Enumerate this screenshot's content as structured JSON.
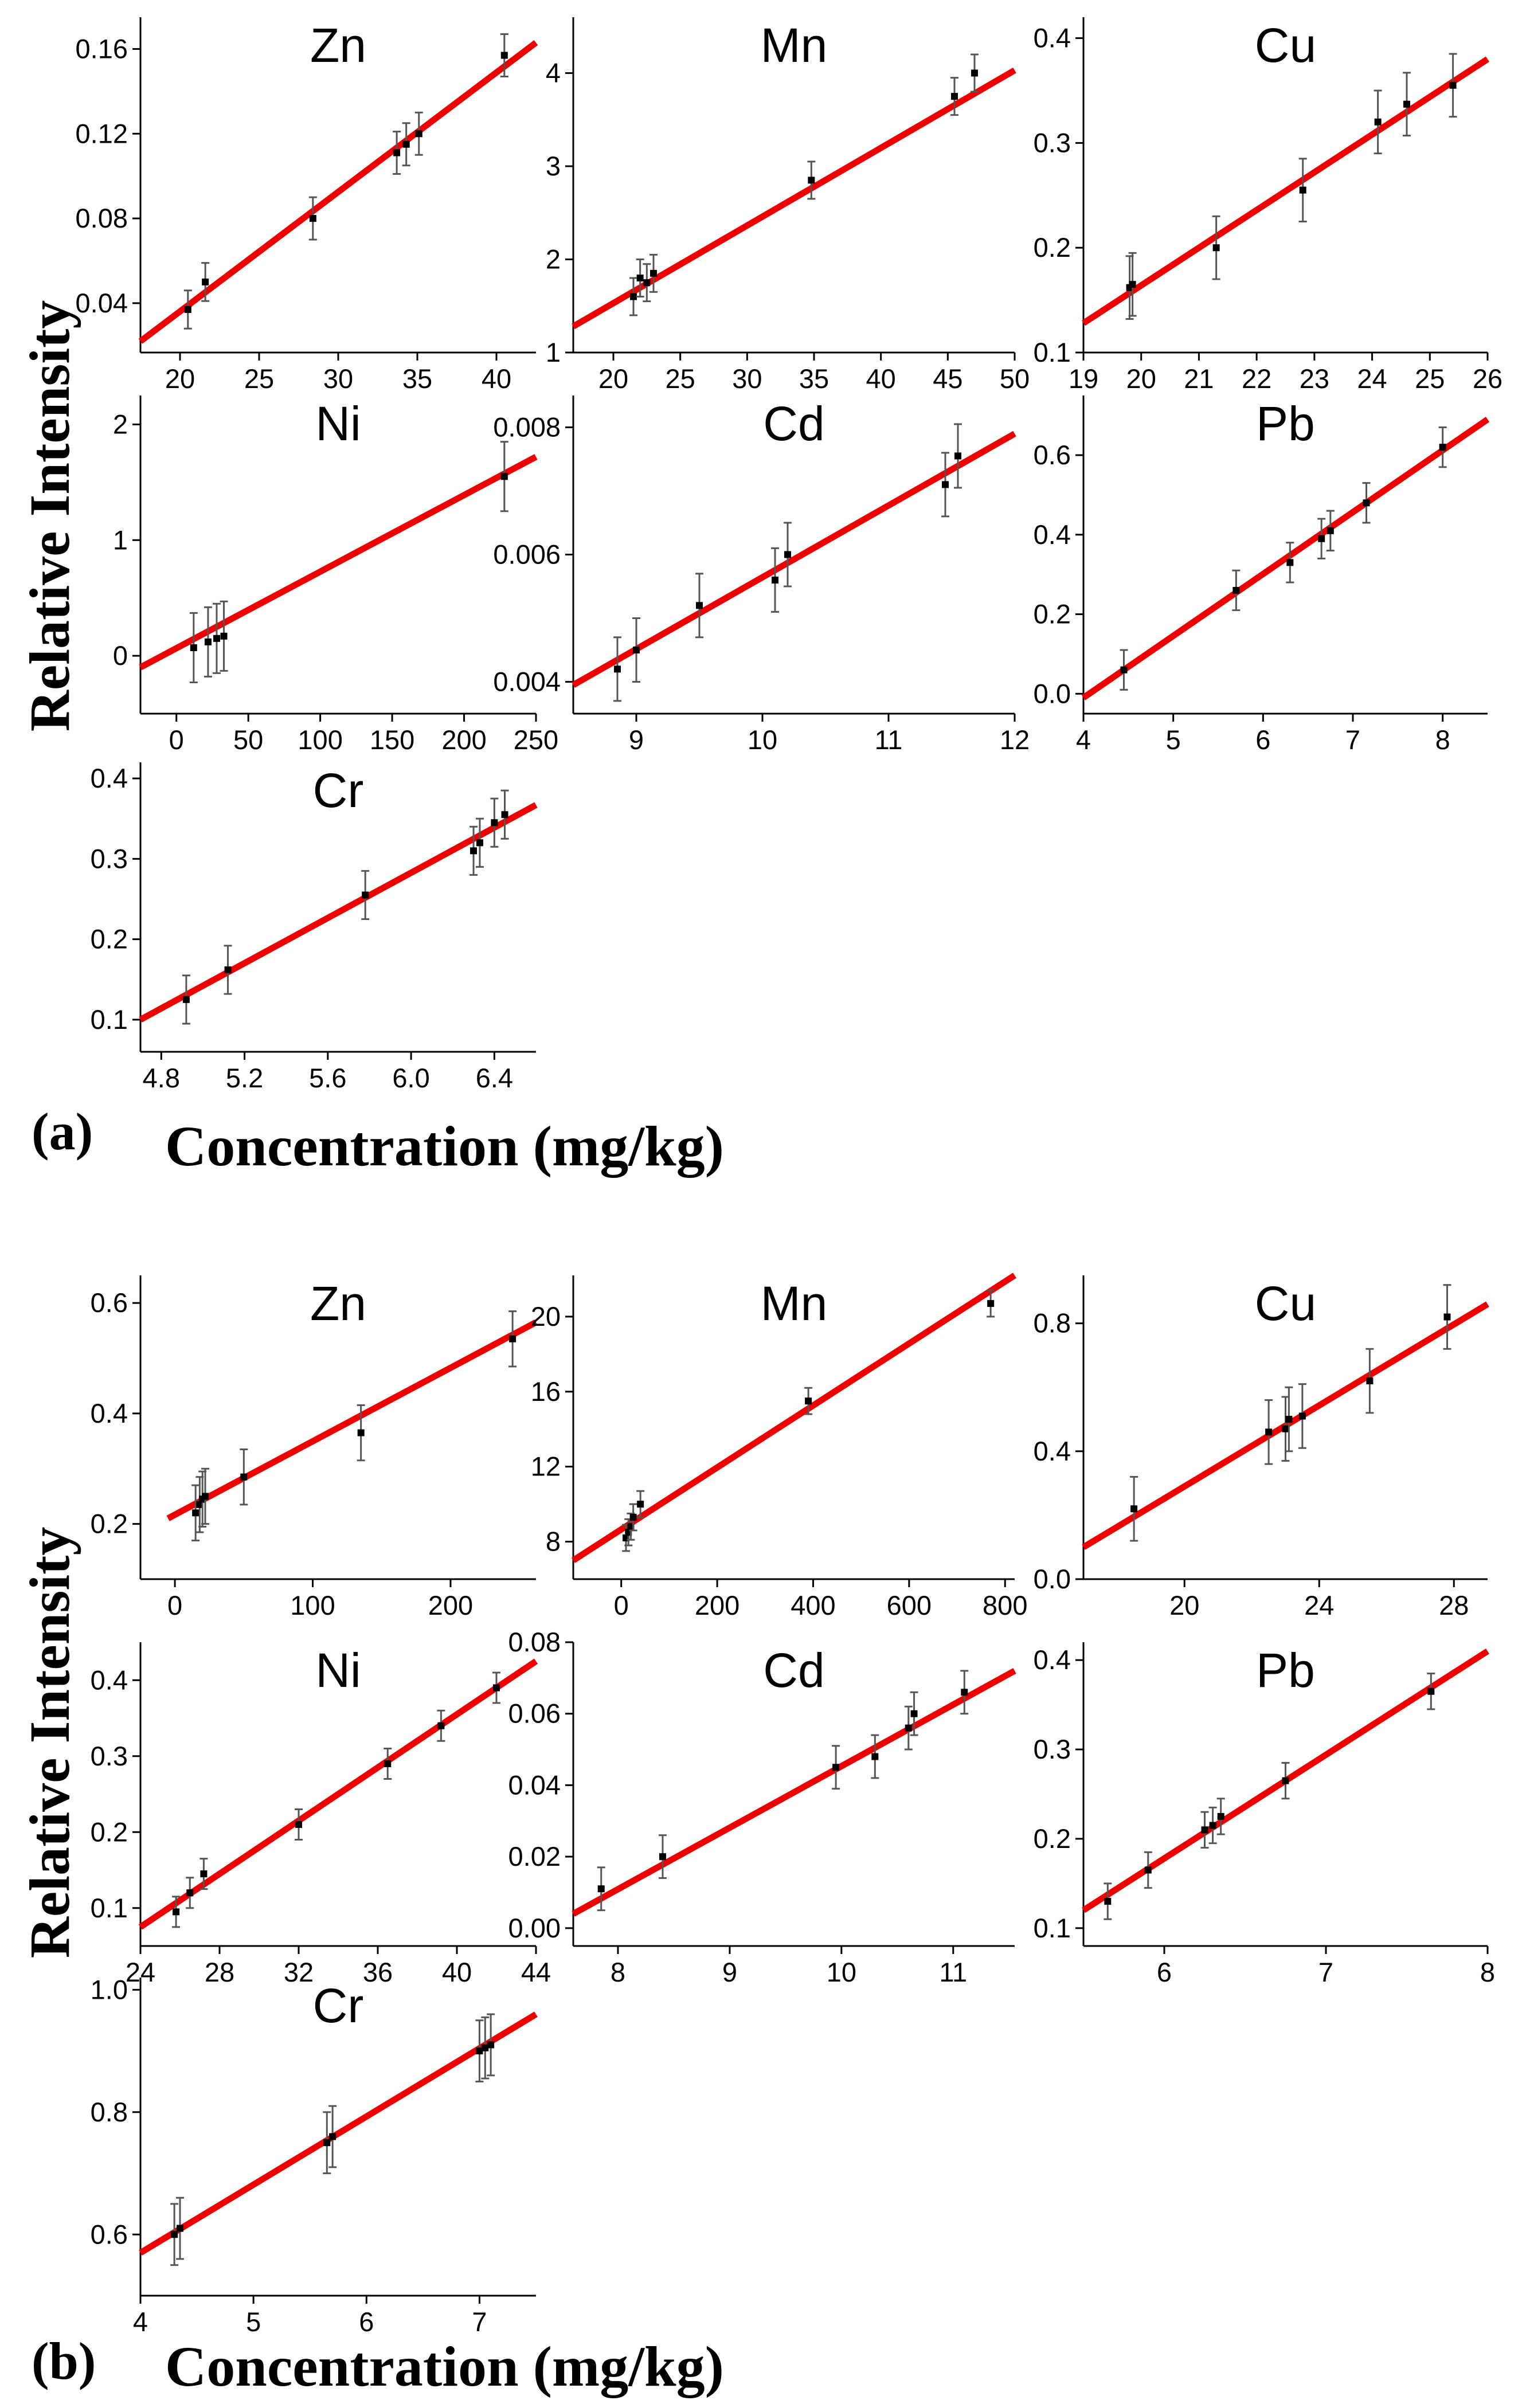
{
  "figure": {
    "parts": [
      {
        "label": "(a)",
        "xlabel": "Concentration (mg/kg)",
        "ylabel": "Relative Intensity"
      },
      {
        "label": "(b)",
        "xlabel": "Concentration (mg/kg)",
        "ylabel": "Relative Intensity"
      }
    ]
  },
  "style": {
    "fit_color": "#ee0000",
    "point_color": "#000000",
    "errorbar_color": "#555555"
  },
  "chart_data": [
    {
      "part": "a",
      "type": "scatter",
      "title": "Zn",
      "xlim": [
        17.5,
        42.5
      ],
      "ylim": [
        0.0167,
        0.175
      ],
      "xticks": [
        20,
        25,
        30,
        35,
        40
      ],
      "yticks": [
        0.04,
        0.08,
        0.12,
        0.16
      ],
      "x": [
        20.5,
        21.6,
        28.4,
        33.7,
        34.3,
        35.1,
        40.5
      ],
      "y": [
        0.037,
        0.05,
        0.08,
        0.111,
        0.115,
        0.12,
        0.157
      ],
      "err": [
        0.009,
        0.009,
        0.01,
        0.01,
        0.01,
        0.01,
        0.01
      ],
      "fit": [
        [
          17.5,
          0.022
        ],
        [
          42.5,
          0.163
        ]
      ]
    },
    {
      "part": "a",
      "type": "scatter",
      "title": "Mn",
      "xlim": [
        17,
        50
      ],
      "ylim": [
        1,
        4.6
      ],
      "xticks": [
        20,
        25,
        30,
        35,
        40,
        45,
        50
      ],
      "yticks": [
        1,
        2,
        3,
        4
      ],
      "x": [
        21.5,
        22,
        22.5,
        23,
        34.8,
        45.5,
        47
      ],
      "y": [
        1.6,
        1.8,
        1.75,
        1.85,
        2.85,
        3.75,
        4.0
      ],
      "err": [
        0.2,
        0.2,
        0.2,
        0.2,
        0.2,
        0.2,
        0.2
      ],
      "fit": [
        [
          17,
          1.28
        ],
        [
          50,
          4.03
        ]
      ]
    },
    {
      "part": "a",
      "type": "scatter",
      "title": "Cu",
      "xlim": [
        19,
        26
      ],
      "ylim": [
        0.1,
        0.42
      ],
      "xticks": [
        19,
        20,
        21,
        22,
        23,
        24,
        25,
        26
      ],
      "yticks": [
        0.1,
        0.2,
        0.3,
        0.4
      ],
      "x": [
        19.8,
        19.85,
        21.3,
        22.8,
        24.1,
        24.6,
        25.4
      ],
      "y": [
        0.162,
        0.165,
        0.2,
        0.255,
        0.32,
        0.337,
        0.355
      ],
      "err": [
        0.03,
        0.03,
        0.03,
        0.03,
        0.03,
        0.03,
        0.03
      ],
      "fit": [
        [
          19,
          0.128
        ],
        [
          26,
          0.38
        ]
      ]
    },
    {
      "part": "a",
      "type": "scatter",
      "title": "Ni",
      "xlim": [
        -25,
        250
      ],
      "ylim": [
        -0.5,
        2.25
      ],
      "xticks": [
        0,
        50,
        100,
        150,
        200,
        250
      ],
      "yticks": [
        0,
        1,
        2
      ],
      "x": [
        12,
        22,
        28,
        33,
        228
      ],
      "y": [
        0.07,
        0.12,
        0.15,
        0.17,
        1.55
      ],
      "err": [
        0.3,
        0.3,
        0.3,
        0.3,
        0.3
      ],
      "fit": [
        [
          -25,
          -0.1
        ],
        [
          250,
          1.72
        ]
      ]
    },
    {
      "part": "a",
      "type": "scatter",
      "title": "Cd",
      "xlim": [
        8.5,
        12
      ],
      "ylim": [
        0.0035,
        0.0085
      ],
      "xticks": [
        9,
        10,
        11,
        12
      ],
      "yticks": [
        0.004,
        0.006,
        0.008
      ],
      "x": [
        8.85,
        9.0,
        9.5,
        10.1,
        10.2,
        11.45,
        11.55
      ],
      "y": [
        0.0042,
        0.0045,
        0.0052,
        0.0056,
        0.006,
        0.0071,
        0.00755
      ],
      "err": [
        0.0005,
        0.0005,
        0.0005,
        0.0005,
        0.0005,
        0.0005,
        0.0005
      ],
      "fit": [
        [
          8.5,
          0.00395
        ],
        [
          12,
          0.0079
        ]
      ]
    },
    {
      "part": "a",
      "type": "scatter",
      "title": "Pb",
      "xlim": [
        4,
        8.5
      ],
      "ylim": [
        -0.05,
        0.75
      ],
      "xticks": [
        4,
        5,
        6,
        7,
        8
      ],
      "yticks": [
        0.0,
        0.2,
        0.4,
        0.6
      ],
      "x": [
        4.45,
        5.7,
        6.3,
        6.65,
        6.75,
        7.15,
        8.0
      ],
      "y": [
        0.06,
        0.26,
        0.33,
        0.39,
        0.41,
        0.48,
        0.62
      ],
      "err": [
        0.05,
        0.05,
        0.05,
        0.05,
        0.05,
        0.05,
        0.05
      ],
      "fit": [
        [
          4,
          -0.01
        ],
        [
          8.5,
          0.69
        ]
      ]
    },
    {
      "part": "a",
      "type": "scatter",
      "title": "Cr",
      "xlim": [
        4.7,
        6.6
      ],
      "ylim": [
        0.06,
        0.42
      ],
      "xticks": [
        4.8,
        5.2,
        5.6,
        6.0,
        6.4
      ],
      "xtick_labels": [
        "4.8",
        "5.2",
        "5.6",
        "6.0",
        "6.4"
      ],
      "yticks": [
        0.1,
        0.2,
        0.3,
        0.4
      ],
      "x": [
        4.92,
        5.12,
        5.78,
        6.3,
        6.33,
        6.4,
        6.45
      ],
      "y": [
        0.125,
        0.162,
        0.255,
        0.31,
        0.32,
        0.345,
        0.355
      ],
      "err": [
        0.03,
        0.03,
        0.03,
        0.03,
        0.03,
        0.03,
        0.03
      ],
      "fit": [
        [
          4.7,
          0.1
        ],
        [
          6.6,
          0.367
        ]
      ]
    },
    {
      "part": "b",
      "type": "scatter",
      "title": "Zn",
      "xlim": [
        -25,
        262
      ],
      "ylim": [
        0.1,
        0.65
      ],
      "xticks": [
        0,
        100,
        200
      ],
      "yticks": [
        0.2,
        0.4,
        0.6
      ],
      "x": [
        15,
        18,
        20,
        22,
        50,
        135,
        245
      ],
      "y": [
        0.22,
        0.235,
        0.245,
        0.25,
        0.285,
        0.365,
        0.535
      ],
      "err": [
        0.05,
        0.05,
        0.05,
        0.05,
        0.05,
        0.05,
        0.05
      ],
      "fit": [
        [
          -5,
          0.21
        ],
        [
          262,
          0.565
        ]
      ]
    },
    {
      "part": "b",
      "type": "scatter",
      "title": "Mn",
      "xlim": [
        -100,
        820
      ],
      "ylim": [
        6,
        22.2
      ],
      "xticks": [
        0,
        200,
        400,
        600,
        800
      ],
      "yticks": [
        8,
        12,
        16,
        20
      ],
      "x": [
        10,
        15,
        20,
        25,
        40,
        390,
        770
      ],
      "y": [
        8.2,
        8.5,
        8.8,
        9.3,
        10.0,
        15.5,
        20.7
      ],
      "err": [
        0.7,
        0.7,
        0.7,
        0.7,
        0.7,
        0.7,
        0.7
      ],
      "fit": [
        [
          -100,
          7.0
        ],
        [
          820,
          22.2
        ]
      ]
    },
    {
      "part": "b",
      "type": "scatter",
      "title": "Cu",
      "xlim": [
        17,
        29
      ],
      "ylim": [
        0,
        0.95
      ],
      "xticks": [
        20,
        24,
        28
      ],
      "yticks": [
        0.0,
        0.4,
        0.8
      ],
      "x": [
        18.5,
        22.5,
        23,
        23.1,
        23.5,
        25.5,
        27.8
      ],
      "y": [
        0.22,
        0.46,
        0.47,
        0.5,
        0.51,
        0.62,
        0.82
      ],
      "err": [
        0.1,
        0.1,
        0.1,
        0.1,
        0.1,
        0.1,
        0.1
      ],
      "fit": [
        [
          17,
          0.1
        ],
        [
          29,
          0.86
        ]
      ]
    },
    {
      "part": "b",
      "type": "scatter",
      "title": "Ni",
      "xlim": [
        24,
        44
      ],
      "ylim": [
        0.05,
        0.45
      ],
      "xticks": [
        24,
        28,
        32,
        36,
        40,
        44
      ],
      "yticks": [
        0.1,
        0.2,
        0.3,
        0.4
      ],
      "x": [
        25.8,
        26.5,
        27.2,
        32,
        36.5,
        39.2,
        42
      ],
      "y": [
        0.095,
        0.12,
        0.145,
        0.21,
        0.29,
        0.34,
        0.39
      ],
      "err": [
        0.02,
        0.02,
        0.02,
        0.02,
        0.02,
        0.02,
        0.02
      ],
      "fit": [
        [
          24,
          0.075
        ],
        [
          44,
          0.425
        ]
      ]
    },
    {
      "part": "b",
      "type": "scatter",
      "title": "Cd",
      "xlim": [
        7.6,
        11.55
      ],
      "ylim": [
        -0.005,
        0.08
      ],
      "xticks": [
        8,
        9,
        10,
        11
      ],
      "yticks": [
        0.0,
        0.02,
        0.04,
        0.06,
        0.08
      ],
      "x": [
        7.85,
        8.4,
        9.95,
        10.3,
        10.6,
        10.65,
        11.1
      ],
      "y": [
        0.011,
        0.02,
        0.045,
        0.048,
        0.056,
        0.06,
        0.066
      ],
      "err": [
        0.006,
        0.006,
        0.006,
        0.006,
        0.006,
        0.006,
        0.006
      ],
      "fit": [
        [
          7.6,
          0.004
        ],
        [
          11.55,
          0.072
        ]
      ]
    },
    {
      "part": "b",
      "type": "scatter",
      "title": "Pb",
      "xlim": [
        5.5,
        8
      ],
      "ylim": [
        0.08,
        0.42
      ],
      "xticks": [
        6,
        7,
        8
      ],
      "yticks": [
        0.1,
        0.2,
        0.3,
        0.4
      ],
      "x": [
        5.65,
        5.9,
        6.25,
        6.3,
        6.35,
        6.75,
        7.65
      ],
      "y": [
        0.13,
        0.165,
        0.21,
        0.215,
        0.225,
        0.265,
        0.365
      ],
      "err": [
        0.02,
        0.02,
        0.02,
        0.02,
        0.02,
        0.02,
        0.02
      ],
      "fit": [
        [
          5.5,
          0.12
        ],
        [
          8,
          0.41
        ]
      ]
    },
    {
      "part": "b",
      "type": "scatter",
      "title": "Cr",
      "xlim": [
        4,
        7.5
      ],
      "ylim": [
        0.5,
        1.02
      ],
      "xticks": [
        4,
        5,
        6,
        7
      ],
      "yticks": [
        0.6,
        0.8,
        1.0
      ],
      "x": [
        4.3,
        4.35,
        5.65,
        5.7,
        7.0,
        7.05,
        7.1
      ],
      "y": [
        0.6,
        0.61,
        0.75,
        0.76,
        0.9,
        0.905,
        0.91
      ],
      "err": [
        0.05,
        0.05,
        0.05,
        0.05,
        0.05,
        0.05,
        0.05
      ],
      "fit": [
        [
          4,
          0.57
        ],
        [
          7.5,
          0.96
        ]
      ]
    }
  ]
}
